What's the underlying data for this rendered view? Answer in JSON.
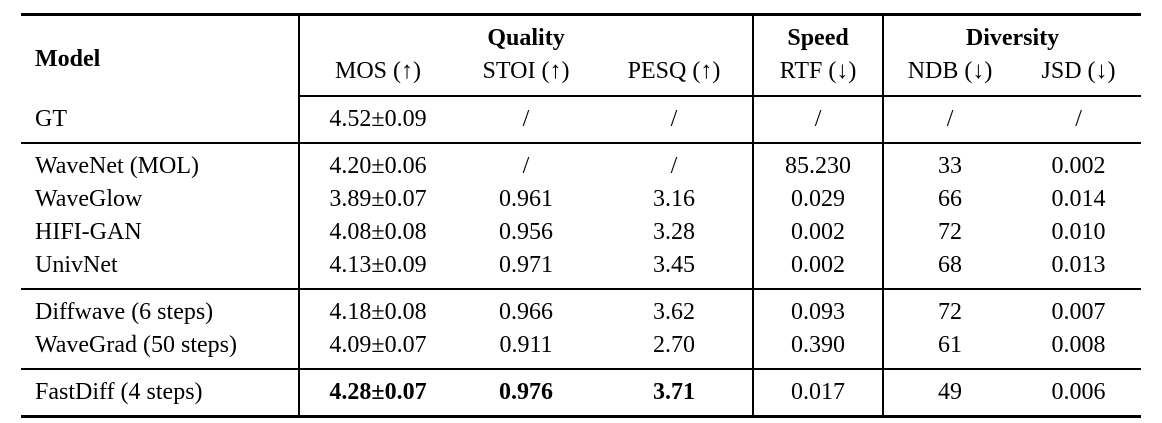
{
  "table": {
    "header": {
      "model_label": "Model",
      "groups": [
        {
          "label": "Quality",
          "span": 3
        },
        {
          "label": "Speed",
          "span": 1
        },
        {
          "label": "Diversity",
          "span": 2
        }
      ],
      "metrics": [
        "MOS (↑)",
        "STOI (↑)",
        "PESQ (↑)",
        "RTF (↓)",
        "NDB (↓)",
        "JSD (↓)"
      ]
    },
    "sections": [
      {
        "rows": [
          {
            "cells": [
              "GT",
              "4.52±0.09",
              "/",
              "/",
              "/",
              "/",
              "/"
            ],
            "bold_cells": []
          }
        ]
      },
      {
        "rows": [
          {
            "cells": [
              "WaveNet (MOL)",
              "4.20±0.06",
              "/",
              "/",
              "85.230",
              "33",
              "0.002"
            ],
            "bold_cells": []
          },
          {
            "cells": [
              "WaveGlow",
              "3.89±0.07",
              "0.961",
              "3.16",
              "0.029",
              "66",
              "0.014"
            ],
            "bold_cells": []
          },
          {
            "cells": [
              "HIFI-GAN",
              "4.08±0.08",
              "0.956",
              "3.28",
              "0.002",
              "72",
              "0.010"
            ],
            "bold_cells": []
          },
          {
            "cells": [
              "UnivNet",
              "4.13±0.09",
              "0.971",
              "3.45",
              "0.002",
              "68",
              "0.013"
            ],
            "bold_cells": []
          }
        ]
      },
      {
        "rows": [
          {
            "cells": [
              "Diffwave (6 steps)",
              "4.18±0.08",
              "0.966",
              "3.62",
              "0.093",
              "72",
              "0.007"
            ],
            "bold_cells": []
          },
          {
            "cells": [
              "WaveGrad (50 steps)",
              "4.09±0.07",
              "0.911",
              "2.70",
              "0.390",
              "61",
              "0.008"
            ],
            "bold_cells": []
          }
        ]
      },
      {
        "rows": [
          {
            "cells": [
              "FastDiff (4 steps)",
              "4.28±0.07",
              "0.976",
              "3.71",
              "0.017",
              "49",
              "0.006"
            ],
            "bold_cells": [
              1,
              2,
              3
            ]
          }
        ]
      }
    ],
    "colors": {
      "text": "#000000",
      "background": "#ffffff",
      "rule": "#000000"
    }
  }
}
